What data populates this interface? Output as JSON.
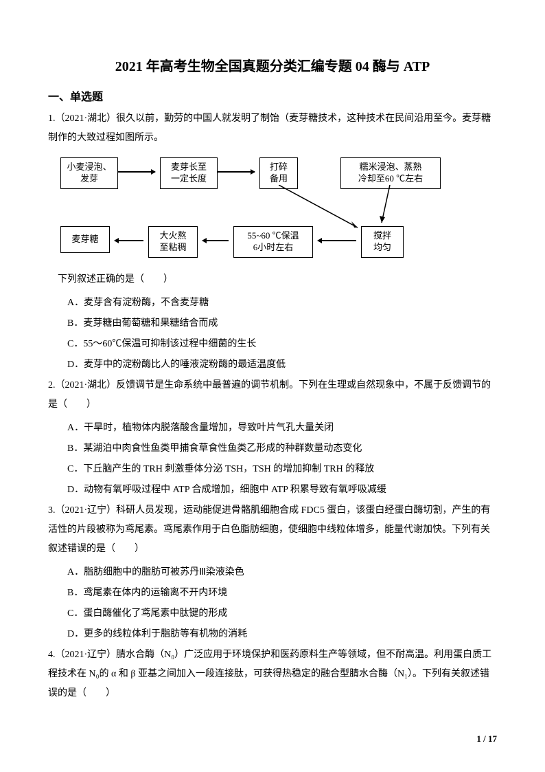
{
  "title": "2021 年高考生物全国真题分类汇编专题 04 酶与 ATP",
  "section_header": "一、单选题",
  "q1": {
    "intro": "1.（2021·湖北）很久以前，勤劳的中国人就发明了制饴（麦芽糖技术，这种技术在民间沿用至今。麦芽糖制作的大致过程如图所示。",
    "prompt": "下列叙述正确的是（　　）",
    "options": {
      "A": "A．麦芽含有淀粉酶，不含麦芽糖",
      "B": "B．麦芽糖由葡萄糖和果糖结合而成",
      "C": "C．55～60℃保温可抑制该过程中细菌的生长",
      "D": "D．麦芽中的淀粉酶比人的唾液淀粉酶的最适温度低"
    }
  },
  "flowchart": {
    "box1": "小麦浸泡、\n发芽",
    "box2": "麦芽长至\n一定长度",
    "box3": "打碎\n备用",
    "box4": "糯米浸泡、蒸熟\n冷却至60 ℃左右",
    "box5": "搅拌\n均匀",
    "box6": "55~60 ℃保温\n6小时左右",
    "box7": "大火熬\n至粘稠",
    "box8": "麦芽糖"
  },
  "q2": {
    "intro": "2.（2021·湖北）反馈调节是生命系统中最普遍的调节机制。下列在生理或自然现象中，不属于反馈调节的是（　　）",
    "options": {
      "A": "A．干旱时，植物体内脱落酸含量增加，导致叶片气孔大量关闭",
      "B": "B．某湖泊中肉食性鱼类甲捕食草食性鱼类乙形成的种群数量动态变化",
      "C": "C．下丘脑产生的 TRH 刺激垂体分泌 TSH，TSH 的增加抑制 TRH 的释放",
      "D": "D．动物有氧呼吸过程中 ATP 合成增加，细胞中 ATP 积累导致有氧呼吸减缓"
    }
  },
  "q3": {
    "intro": "3.（2021·辽宁）科研人员发现，运动能促进骨骼肌细胞合成 FDC5 蛋白，该蛋白经蛋白酶切割，产生的有活性的片段被称为鸢尾素。鸢尾素作用于白色脂肪细胞，使细胞中线粒体增多，能量代谢加快。下列有关叙述错误的是（　　）",
    "options": {
      "A": "A．脂肪细胞中的脂肪可被苏丹Ⅲ染液染色",
      "B": "B．鸢尾素在体内的运输离不开内环境",
      "C": "C．蛋白酶催化了鸢尾素中肽键的形成",
      "D": "D．更多的线粒体利于脂肪等有机物的消耗"
    }
  },
  "q4": {
    "intro": "4.（2021·辽宁）腈水合酶（N₀）广泛应用于环境保护和医药原料生产等领域，但不耐高温。利用蛋白质工程技术在 N₀的 α 和 β 亚基之间加入一段连接肽，可获得热稳定的融合型腈水合酶（N₁）。下列有关叙述错误的是（　　）"
  },
  "page_number": "1 / 17"
}
